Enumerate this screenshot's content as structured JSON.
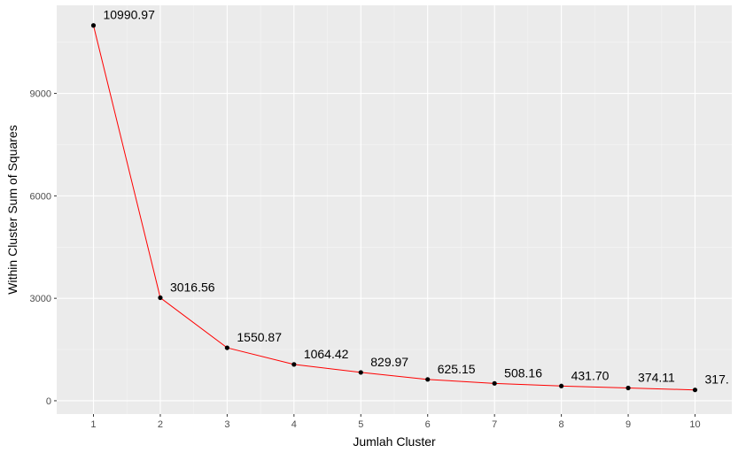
{
  "chart_data": {
    "type": "line",
    "title": "",
    "xlabel": "Jumlah Cluster",
    "ylabel": "Within Cluster Sum of Squares",
    "x": [
      1,
      2,
      3,
      4,
      5,
      6,
      7,
      8,
      9,
      10
    ],
    "x_ticks": [
      "1",
      "2",
      "3",
      "4",
      "5",
      "6",
      "7",
      "8",
      "9",
      "10"
    ],
    "y_ticks": [
      0,
      3000,
      6000,
      9000
    ],
    "y_tick_labels": [
      "0",
      "3000",
      "6000",
      "9000"
    ],
    "xlim": [
      0.45,
      10.55
    ],
    "ylim": [
      -390,
      11580
    ],
    "series": [
      {
        "values": [
          10990.97,
          3016.56,
          1550.87,
          1064.42,
          829.97,
          625.15,
          508.16,
          431.7,
          374.11,
          317.4
        ],
        "labels": [
          "10990.97",
          "3016.56",
          "1550.87",
          "1064.42",
          "829.97",
          "625.15",
          "508.16",
          "431.70",
          "374.11",
          "317."
        ]
      }
    ],
    "grid": true,
    "legend": "none",
    "colors": {
      "line": "#ff0000",
      "point": "#000000",
      "panel": "#ebebeb",
      "grid_major": "#ffffff"
    }
  }
}
